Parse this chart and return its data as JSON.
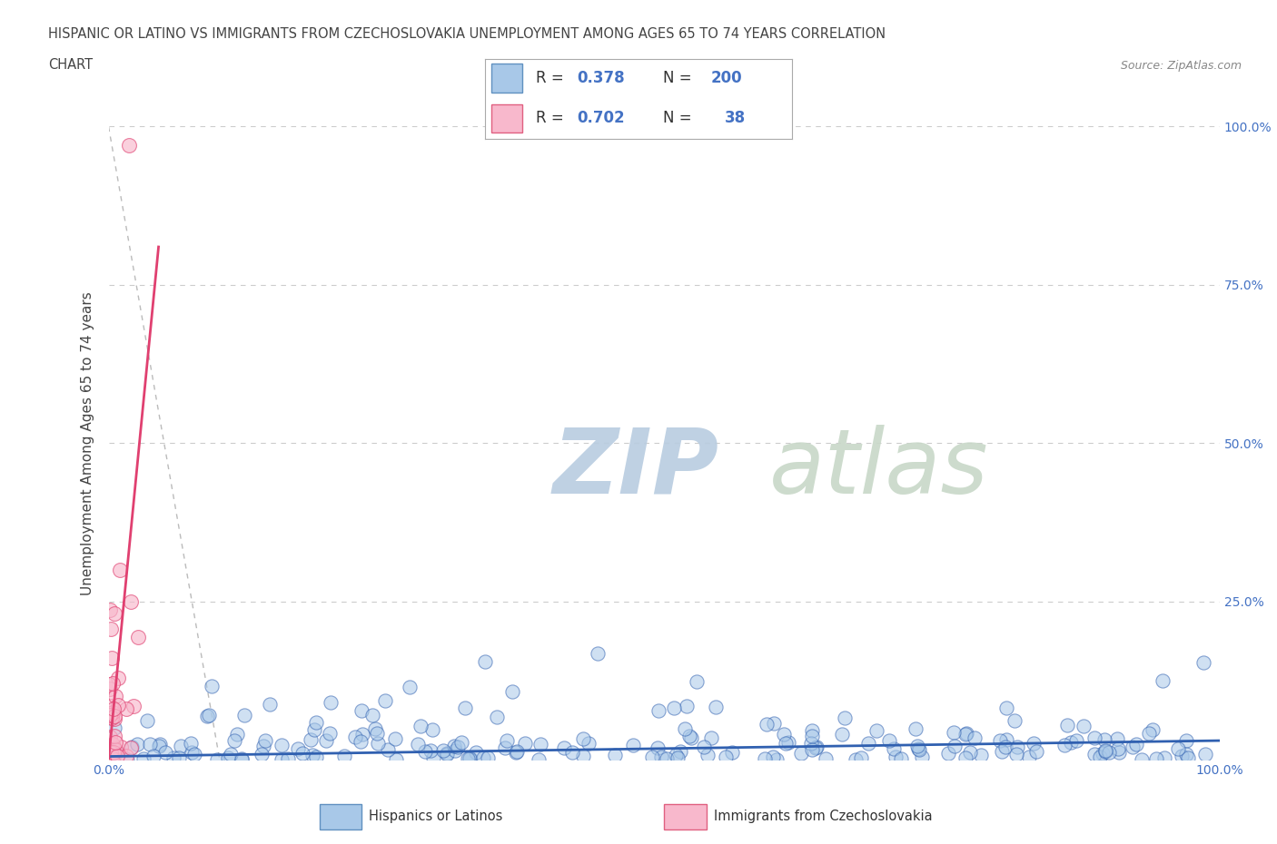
{
  "title_line1": "HISPANIC OR LATINO VS IMMIGRANTS FROM CZECHOSLOVAKIA UNEMPLOYMENT AMONG AGES 65 TO 74 YEARS CORRELATION",
  "title_line2": "CHART",
  "source_text": "Source: ZipAtlas.com",
  "ylabel": "Unemployment Among Ages 65 to 74 years",
  "xlabel": "",
  "series": [
    {
      "name": "Hispanics or Latinos",
      "R": 0.378,
      "N": 200,
      "color": "#a8c8e8",
      "marker_color": "#a8c8e8",
      "line_color": "#3060b0",
      "alpha": 0.55
    },
    {
      "name": "Immigrants from Czechoslovakia",
      "R": 0.702,
      "N": 38,
      "color": "#f8b8cc",
      "marker_color": "#f8b8cc",
      "line_color": "#e04070",
      "alpha": 0.65
    }
  ],
  "xlim": [
    0.0,
    1.0
  ],
  "ylim": [
    0.0,
    1.0
  ],
  "x_ticks": [
    0.0,
    0.25,
    0.5,
    0.75,
    1.0
  ],
  "y_ticks": [
    0.0,
    0.25,
    0.5,
    0.75,
    1.0
  ],
  "watermark_zip": "ZIP",
  "watermark_atlas": "atlas",
  "watermark_color_zip": "#b8cce0",
  "watermark_color_atlas": "#c8d8c8",
  "background_color": "#ffffff",
  "grid_color": "#cccccc",
  "title_color": "#444444",
  "axis_label_color": "#444444",
  "tick_label_color": "#4472c4",
  "legend_text_color": "#333333",
  "legend_value_color": "#4472c4",
  "seed_blue": 42,
  "seed_pink": 99
}
